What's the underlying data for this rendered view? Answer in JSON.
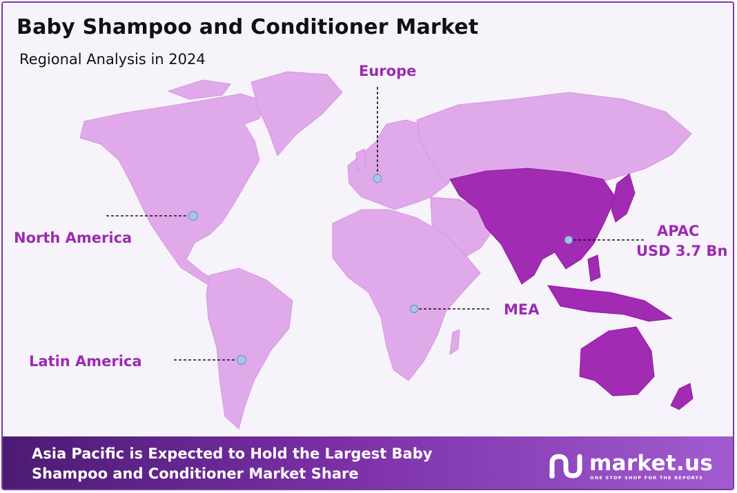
{
  "title": "Baby Shampoo and Conditioner Market",
  "subtitle": "Regional Analysis in 2024",
  "regions": {
    "europe": "Europe",
    "north_america": "North America",
    "latin_america": "Latin America",
    "mea": "MEA",
    "apac": "APAC",
    "apac_value": "USD 3.7 Bn"
  },
  "highlighted_region": "APAC",
  "colors": {
    "land": "#e0aaea",
    "highlight": "#a22bb3",
    "label": "#9b2bb0",
    "marker": "#a9c4ea",
    "banner_start": "#4b1b72",
    "banner_end": "#a25bd0"
  },
  "banner": {
    "line1": "Asia Pacific is Expected to Hold the Largest Baby",
    "line2": "Shampoo and Conditioner Market Share"
  },
  "logo": {
    "name": "market.us",
    "tagline": "ONE STOP SHOP FOR THE REPORTS"
  }
}
